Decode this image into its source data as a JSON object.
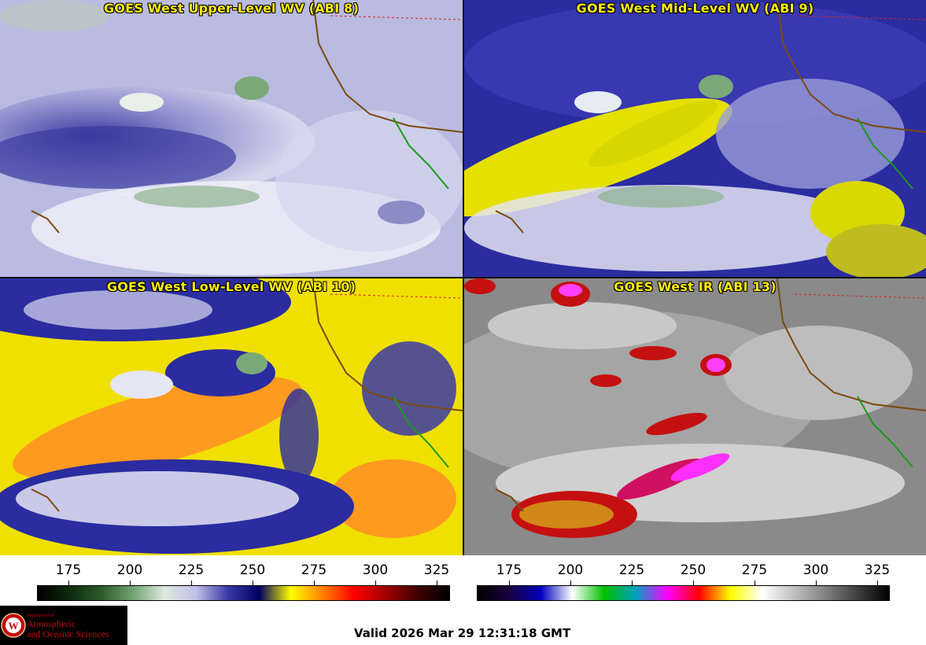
{
  "panels": [
    {
      "title": "GOES West Upper-Level WV (ABI 8)"
    },
    {
      "title": "GOES West Mid-Level WV (ABI 9)"
    },
    {
      "title": "GOES West Low-Level WV (ABI 10)"
    },
    {
      "title": "GOES West IR (ABI 13)"
    }
  ],
  "colorbars": [
    {
      "ticks": [
        "175",
        "200",
        "225",
        "250",
        "275",
        "300",
        "325"
      ],
      "colors": [
        "#000000",
        "#0d2a0d",
        "#2d5a2d",
        "#6fa36f",
        "#dfe9df",
        "#c0c0e8",
        "#3a3aa8",
        "#000060",
        "#ffff00",
        "#ff8000",
        "#ff0000",
        "#a00000",
        "#400000",
        "#000000"
      ]
    },
    {
      "ticks": [
        "175",
        "200",
        "225",
        "250",
        "275",
        "300",
        "325"
      ],
      "colors": [
        "#000000",
        "#1a0040",
        "#0000c0",
        "#ffffff",
        "#00c000",
        "#00a0c0",
        "#ff00ff",
        "#ff0000",
        "#ffff00",
        "#ffffff",
        "#c0c0c0",
        "#808080",
        "#404040",
        "#000000"
      ]
    }
  ],
  "valid_text": "Valid 2026 Mar 29 12:31:18 GMT",
  "logo": {
    "dept_line": "Department of",
    "name_line1": "Atmospheric",
    "name_line2": "and Oceanic Sciences",
    "seal_letter": "W"
  }
}
